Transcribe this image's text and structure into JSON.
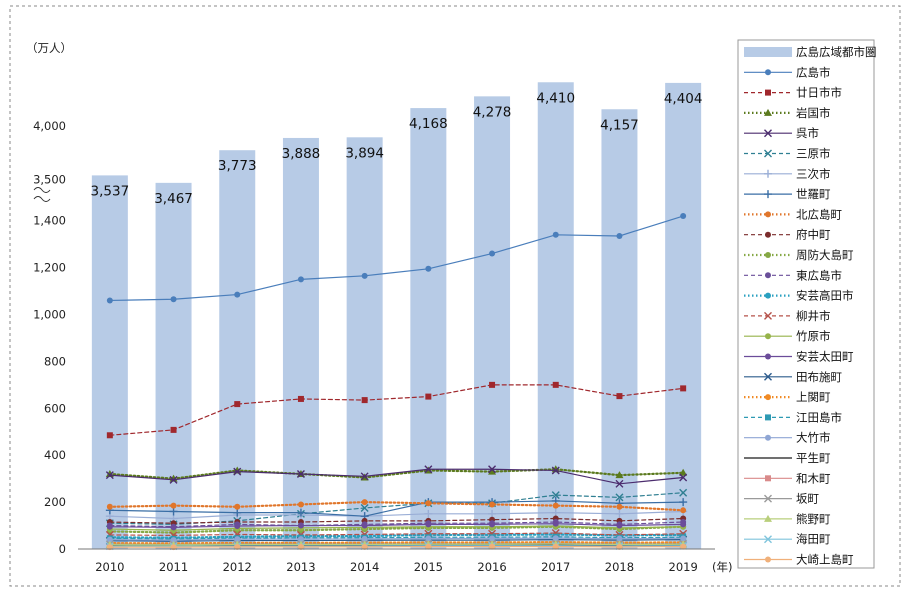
{
  "chart_data": {
    "type": "bar",
    "title": "",
    "unit_label": "（万人）",
    "x_unit_label": "(年)",
    "categories": [
      "2010",
      "2011",
      "2012",
      "2013",
      "2014",
      "2015",
      "2016",
      "2017",
      "2018",
      "2019"
    ],
    "bar_series": {
      "name": "広島広域都市圏",
      "color": "#b7cbe6",
      "values": [
        3537,
        3467,
        3773,
        3888,
        3894,
        4168,
        4278,
        4410,
        4157,
        4404
      ],
      "labels": [
        "3,537",
        "3,467",
        "3,773",
        "3,888",
        "3,894",
        "4,168",
        "4,278",
        "4,410",
        "4,157",
        "4,404"
      ]
    },
    "axis_lower": {
      "range": [
        0,
        1450
      ],
      "ticks": [
        0,
        200,
        400,
        600,
        800,
        1000,
        1200,
        1400
      ],
      "tick_labels": [
        "0",
        "200",
        "400",
        "600",
        "800",
        "1,000",
        "1,200",
        "1,400"
      ]
    },
    "axis_upper": {
      "range": [
        3400,
        4600
      ],
      "ticks": [
        3500,
        4000
      ],
      "tick_labels": [
        "3,500",
        "4,000"
      ]
    },
    "grid": false,
    "legend_position": "right",
    "line_series": [
      {
        "name": "広島市",
        "color": "#4a7ebb",
        "dash": "solid",
        "marker": "circle",
        "values": [
          1060,
          1065,
          1085,
          1150,
          1165,
          1195,
          1260,
          1340,
          1335,
          1420
        ]
      },
      {
        "name": "廿日市市",
        "color": "#a0282d",
        "dash": "dashed",
        "marker": "square",
        "values": [
          485,
          508,
          618,
          640,
          635,
          650,
          700,
          700,
          652,
          685
        ]
      },
      {
        "name": "岩国市",
        "color": "#5b7a1e",
        "dash": "dotted",
        "marker": "triangle",
        "values": [
          320,
          300,
          335,
          320,
          305,
          335,
          330,
          340,
          315,
          325
        ]
      },
      {
        "name": "呉市",
        "color": "#4b2c6e",
        "dash": "solid",
        "marker": "x",
        "values": [
          315,
          295,
          330,
          320,
          310,
          340,
          340,
          335,
          278,
          305
        ]
      },
      {
        "name": "三原市",
        "color": "#2f7f92",
        "dash": "dashed",
        "marker": "x",
        "values": [
          110,
          105,
          120,
          150,
          175,
          195,
          195,
          230,
          220,
          240
        ]
      },
      {
        "name": "三次市",
        "color": "#9aaed6",
        "dash": "solid",
        "marker": "plus",
        "values": [
          140,
          130,
          145,
          145,
          140,
          150,
          150,
          155,
          150,
          160
        ]
      },
      {
        "name": "世羅町",
        "color": "#3a6ea5",
        "dash": "solid",
        "marker": "plus",
        "values": [
          165,
          160,
          155,
          155,
          140,
          200,
          200,
          205,
          195,
          200
        ]
      },
      {
        "name": "北広島町",
        "color": "#e0762b",
        "dash": "dotted",
        "marker": "circle",
        "values": [
          180,
          185,
          180,
          190,
          200,
          195,
          190,
          185,
          180,
          165
        ]
      },
      {
        "name": "府中町",
        "color": "#7b2d2d",
        "dash": "dashed",
        "marker": "circle",
        "values": [
          115,
          110,
          115,
          115,
          120,
          120,
          125,
          130,
          120,
          130
        ]
      },
      {
        "name": "周防大島町",
        "color": "#86a845",
        "dash": "dotted",
        "marker": "circle",
        "values": [
          75,
          70,
          80,
          80,
          85,
          90,
          90,
          95,
          85,
          95
        ]
      },
      {
        "name": "東広島市",
        "color": "#6a4f9a",
        "dash": "dashed",
        "marker": "circle",
        "values": [
          100,
          95,
          105,
          100,
          105,
          110,
          110,
          115,
          105,
          115
        ]
      },
      {
        "name": "安芸高田市",
        "color": "#2aa0c0",
        "dash": "dotted",
        "marker": "circle",
        "values": [
          50,
          48,
          52,
          55,
          55,
          60,
          60,
          62,
          58,
          60
        ]
      },
      {
        "name": "柳井市",
        "color": "#b5524a",
        "dash": "dashed",
        "marker": "x",
        "values": [
          60,
          58,
          62,
          60,
          62,
          65,
          65,
          68,
          60,
          65
        ]
      },
      {
        "name": "竹原市",
        "color": "#96b34a",
        "dash": "solid",
        "marker": "circle",
        "values": [
          85,
          80,
          88,
          90,
          92,
          95,
          95,
          98,
          90,
          95
        ]
      },
      {
        "name": "安芸太田町",
        "color": "#6b4c9a",
        "dash": "solid",
        "marker": "circle",
        "values": [
          95,
          92,
          98,
          100,
          100,
          105,
          105,
          108,
          100,
          105
        ]
      },
      {
        "name": "田布施町",
        "color": "#2c5b8c",
        "dash": "solid",
        "marker": "x",
        "values": [
          35,
          33,
          36,
          36,
          37,
          38,
          38,
          40,
          38,
          40
        ]
      },
      {
        "name": "上関町",
        "color": "#f08a24",
        "dash": "dotted",
        "marker": "circle",
        "values": [
          25,
          24,
          26,
          26,
          27,
          28,
          28,
          29,
          27,
          28
        ]
      },
      {
        "name": "江田島市",
        "color": "#2e9ab3",
        "dash": "dashed",
        "marker": "square",
        "values": [
          45,
          43,
          46,
          48,
          48,
          50,
          50,
          52,
          48,
          50
        ]
      },
      {
        "name": "大竹市",
        "color": "#8fa6d4",
        "dash": "solid",
        "marker": "circle",
        "values": [
          40,
          38,
          42,
          42,
          43,
          45,
          45,
          46,
          44,
          45
        ]
      },
      {
        "name": "平生町",
        "color": "#1a1a1a",
        "dash": "solid",
        "marker": "none",
        "values": [
          15,
          14,
          15,
          15,
          15,
          16,
          16,
          16,
          15,
          16
        ]
      },
      {
        "name": "和木町",
        "color": "#d98a8a",
        "dash": "solid",
        "marker": "square",
        "values": [
          10,
          10,
          11,
          11,
          11,
          12,
          12,
          12,
          11,
          12
        ]
      },
      {
        "name": "坂町",
        "color": "#9a9a9a",
        "dash": "solid",
        "marker": "x",
        "values": [
          20,
          19,
          21,
          21,
          21,
          22,
          22,
          23,
          21,
          22
        ]
      },
      {
        "name": "熊野町",
        "color": "#b9cf7c",
        "dash": "solid",
        "marker": "triangle",
        "values": [
          18,
          17,
          19,
          19,
          19,
          20,
          20,
          21,
          19,
          20
        ]
      },
      {
        "name": "海田町",
        "color": "#7fc4dc",
        "dash": "solid",
        "marker": "x",
        "values": [
          12,
          12,
          13,
          13,
          13,
          14,
          14,
          14,
          13,
          14
        ]
      },
      {
        "name": "大崎上島町",
        "color": "#f0b07a",
        "dash": "solid",
        "marker": "circle",
        "values": [
          8,
          8,
          9,
          9,
          9,
          10,
          10,
          10,
          9,
          10
        ]
      }
    ]
  }
}
